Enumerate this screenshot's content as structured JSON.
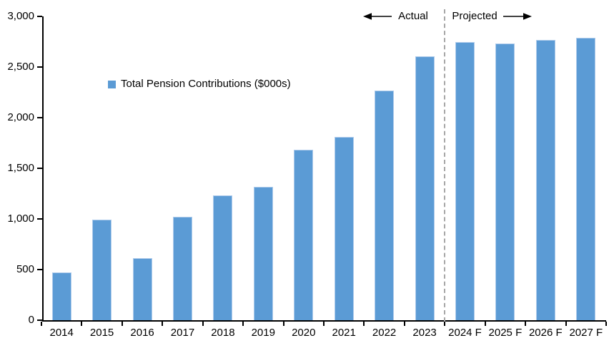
{
  "chart_data": {
    "type": "bar",
    "title": "",
    "series_name": "Total Pension Contributions ($000s)",
    "categories": [
      "2014",
      "2015",
      "2016",
      "2017",
      "2018",
      "2019",
      "2020",
      "2021",
      "2022",
      "2023",
      "2024 F",
      "2025 F",
      "2026 F",
      "2027 F"
    ],
    "values": [
      470,
      990,
      610,
      1020,
      1235,
      1315,
      1680,
      1810,
      2270,
      2605,
      2745,
      2735,
      2770,
      2790
    ],
    "xlabel": "",
    "ylabel": "",
    "ylim": [
      0,
      3000
    ],
    "ytick_interval": 500,
    "ytick_labels": [
      "0",
      "500",
      "1,000",
      "1,500",
      "2,000",
      "2,500",
      "3,000"
    ],
    "grid": false,
    "legend_position": "inside-upper-left",
    "bar_color": "#5B9BD5",
    "bar_border_color": "#AECBEB",
    "axis_color": "#000000",
    "divider": {
      "after_category": "2023",
      "boundary_index": 10,
      "color": "#A6A6A6",
      "style": "dashed"
    },
    "annotations": {
      "actual_label": "Actual",
      "projected_label": "Projected"
    }
  }
}
